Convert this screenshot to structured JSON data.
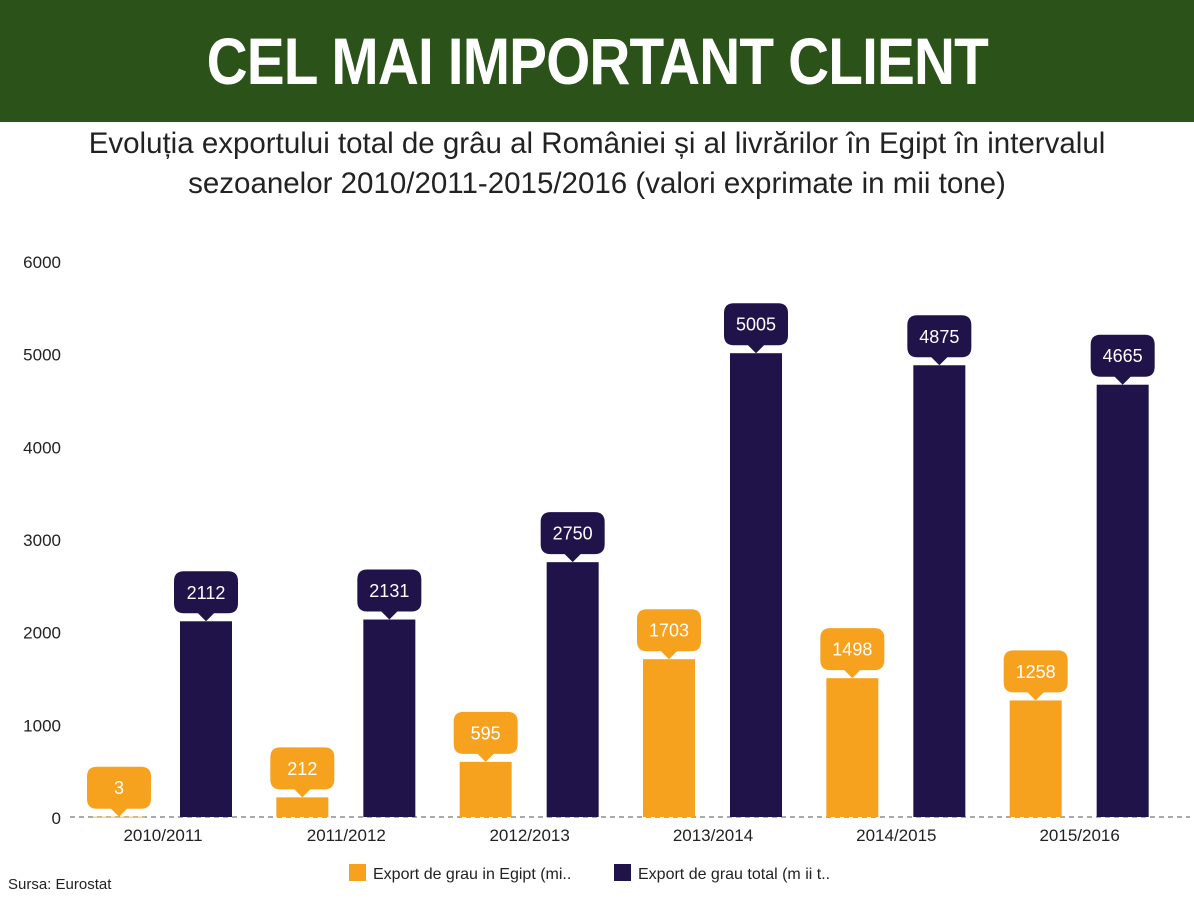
{
  "header": {
    "title": "CEL MAI IMPORTANT CLIENT",
    "subtitle_line1": "Evoluția exportului total de grâu al României și al livrărilor în Egipt în intervalul",
    "subtitle_line2": "sezoanelor 2010/2011-2015/2016 (valori exprimate in mii tone)"
  },
  "chart_data": {
    "type": "bar",
    "categories": [
      "2010/2011",
      "2011/2012",
      "2012/2013",
      "2013/2014",
      "2014/2015",
      "2015/2016"
    ],
    "series": [
      {
        "name": "Export de grau in Egipt (mi..",
        "values": [
          3,
          212,
          595,
          1703,
          1498,
          1258
        ],
        "color": "#f6a21f"
      },
      {
        "name": "Export de grau total (m ii t..",
        "values": [
          2112,
          2131,
          2750,
          5005,
          4875,
          4665
        ],
        "color": "#20134a"
      }
    ],
    "ylim": [
      0,
      6000
    ],
    "yticks": [
      0,
      1000,
      2000,
      3000,
      4000,
      5000,
      6000
    ],
    "legend_position": "bottom",
    "data_labels": true
  },
  "footer": {
    "source": "Sursa: Eurostat"
  }
}
